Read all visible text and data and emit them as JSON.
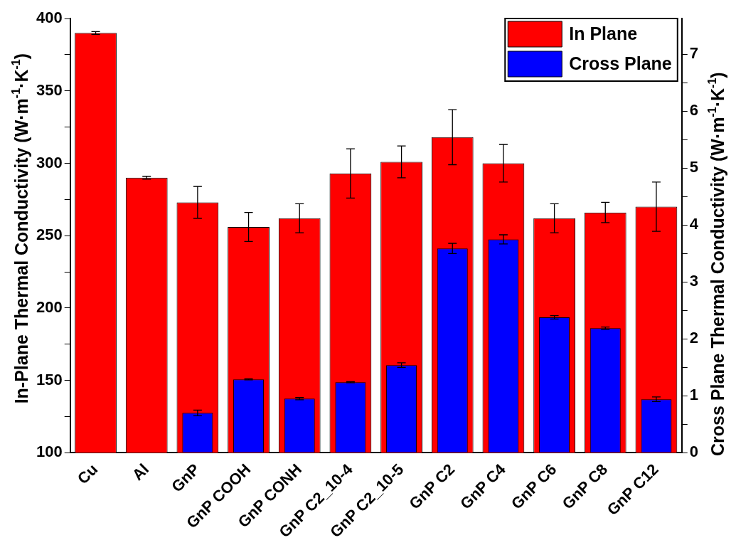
{
  "chart_data": {
    "type": "bar",
    "categories": [
      "Cu",
      "Al",
      "GnP",
      "GnP COOH",
      "GnP CONH",
      "GnP C2_10-4",
      "GnP C2_10-5",
      "GnP C2",
      "GnP C4",
      "GnP C6",
      "GnP C8",
      "GnP C12"
    ],
    "series": [
      {
        "name": "In Plane",
        "color": "#ff0000",
        "values": [
          390,
          290,
          273,
          256,
          262,
          293,
          301,
          318,
          300,
          262,
          266,
          270
        ],
        "errors": [
          1,
          1,
          11,
          10,
          10,
          17,
          11,
          19,
          13,
          10,
          7,
          17
        ]
      },
      {
        "name": "Cross Plane",
        "color": "#0000ff",
        "axis": "y2",
        "values": [
          null,
          null,
          0.7,
          1.29,
          0.95,
          1.24,
          1.54,
          3.59,
          3.75,
          2.38,
          2.19,
          0.94
        ],
        "errors": [
          null,
          null,
          0.05,
          0.01,
          0.02,
          0.01,
          0.04,
          0.09,
          0.08,
          0.03,
          0.02,
          0.04
        ]
      }
    ],
    "ylabel": "In-Plane Thermal Conductivity (W·m$^{-1}$·K$^{-1}$)",
    "y2label": "Cross Plane Thermal Conductivity (W·m$^{-1}$·K$^{-1}$)",
    "ylim": [
      100,
      400
    ],
    "yticks": [
      100,
      {
        "value": 125,
        "label": null
      },
      150,
      {
        "value": 175,
        "label": null
      },
      200,
      {
        "value": 225,
        "label": null
      },
      250,
      {
        "value": 275,
        "label": null
      },
      300,
      {
        "value": 325,
        "label": null
      },
      350,
      {
        "value": 375,
        "label": null
      },
      400
    ],
    "y2lim": [
      0,
      7.63
    ],
    "y2ticks": [
      0,
      {
        "value": 0.5,
        "label": null
      },
      1,
      {
        "value": 1.5,
        "label": null
      },
      2,
      {
        "value": 2.5,
        "label": null
      },
      3,
      {
        "value": 3.5,
        "label": null
      },
      4,
      {
        "value": 4.5,
        "label": null
      },
      5,
      {
        "value": 5.5,
        "label": null
      },
      6,
      {
        "value": 6.5,
        "label": null
      },
      7
    ],
    "grid": false,
    "legend": "top right"
  }
}
